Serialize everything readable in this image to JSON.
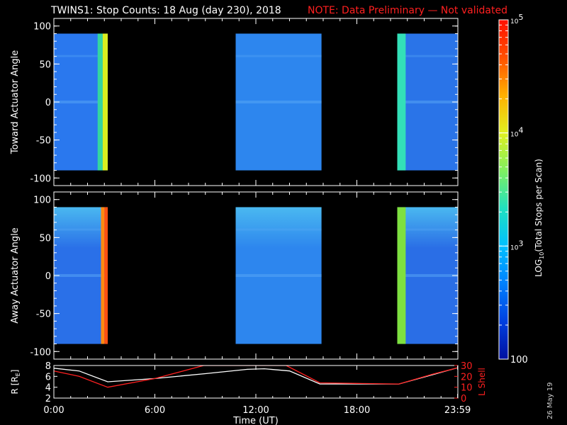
{
  "title": "TWINS1: Stop Counts: 18 Aug (day 230), 2018",
  "note": "NOTE: Data Preliminary — Not validated",
  "date_stamp": "26 May 19",
  "colors": {
    "background": "#000000",
    "note": "#ff2020",
    "axis": "#ffffff",
    "r_trace": "#ffffff",
    "lshell_trace": "#ff2020"
  },
  "chart_data": [
    {
      "type": "heatmap",
      "name": "toward",
      "ylabel": "Toward Actuator Angle",
      "ylim": [
        -110,
        110
      ],
      "yticks": [
        100,
        50,
        0,
        -50,
        -100
      ],
      "xlim": [
        0,
        24
      ],
      "angle_range": [
        -90,
        90
      ],
      "blocks": [
        {
          "start": 0.0,
          "end": 3.2,
          "base": "#2a78ee",
          "bright_edge": {
            "start": 2.6,
            "end": 3.2,
            "colors": [
              "#33d6a0",
              "#d8ee20"
            ]
          }
        },
        {
          "start": 10.8,
          "end": 15.9,
          "base": "#2d86ee"
        },
        {
          "start": 20.4,
          "end": 24.0,
          "base": "#2a74e8",
          "bright_edge": {
            "start": 20.4,
            "end": 20.9,
            "colors": [
              "#33e0b8"
            ]
          }
        }
      ]
    },
    {
      "type": "heatmap",
      "name": "away",
      "ylabel": "Away Actuator Angle",
      "ylim": [
        -110,
        110
      ],
      "yticks": [
        100,
        50,
        0,
        -50,
        -100
      ],
      "xlim": [
        0,
        24
      ],
      "angle_range": [
        -90,
        90
      ],
      "blocks": [
        {
          "start": 0.0,
          "end": 3.2,
          "base": "#2a70e8",
          "bright_edge": {
            "start": 2.8,
            "end": 3.2,
            "colors": [
              "#ff8a10",
              "#ff5010"
            ]
          }
        },
        {
          "start": 10.8,
          "end": 15.9,
          "base": "#2d86ee"
        },
        {
          "start": 20.4,
          "end": 24.0,
          "base": "#2a6ee6",
          "bright_edge": {
            "start": 20.4,
            "end": 20.9,
            "colors": [
              "#7ee040"
            ]
          }
        }
      ]
    },
    {
      "type": "line",
      "name": "orbit",
      "ylabel_left": "R [R",
      "ylabel_left_sub": "E",
      "ylabel_left_close": "]",
      "ylabel_right": "L Shell",
      "ylim_left": [
        2,
        8
      ],
      "yticks_left": [
        8,
        6,
        4,
        2
      ],
      "ylim_right": [
        0,
        30
      ],
      "yticks_right": [
        30,
        20,
        10,
        0
      ],
      "xlim": [
        0,
        24
      ],
      "xticks": [
        0,
        6,
        12,
        18,
        23.983
      ],
      "xtick_labels": [
        "0:00",
        "6:00",
        "12:00",
        "18:00",
        "23:59"
      ],
      "xlabel": "Time (UT)",
      "series": [
        {
          "axis": "left",
          "x": [
            0,
            1.5,
            3.2,
            6,
            9,
            11.5,
            12.5,
            14,
            15.8,
            18,
            20.5,
            22.5,
            24
          ],
          "y": [
            7.5,
            7.0,
            5.0,
            5.6,
            6.5,
            7.3,
            7.4,
            7.0,
            4.6,
            4.6,
            4.6,
            6.3,
            7.6
          ]
        },
        {
          "axis": "right",
          "x": [
            0,
            1.5,
            3.2,
            6,
            8.9,
            13.8,
            15.8,
            18,
            20.5,
            22.5,
            24
          ],
          "y": [
            25,
            20,
            10,
            18,
            30,
            30,
            14,
            13.5,
            13,
            22,
            28
          ]
        }
      ]
    }
  ],
  "colorbar": {
    "label_log": "LOG",
    "label_sub": "10",
    "label_rest": "(Total Stops per Scan)",
    "ticks": [
      {
        "base": "10",
        "exp": "5",
        "value": 100000
      },
      {
        "base": "10",
        "exp": "4",
        "value": 10000
      },
      {
        "base": "10",
        "exp": "3",
        "value": 1000
      },
      {
        "base": "100",
        "exp": "",
        "value": 100
      }
    ],
    "range": [
      100,
      100000
    ],
    "stops": [
      "#0010a0",
      "#0040e0",
      "#0080ff",
      "#00c0ff",
      "#20e0c0",
      "#80f060",
      "#e0f020",
      "#ffb000",
      "#ff5000",
      "#ff1000"
    ]
  }
}
